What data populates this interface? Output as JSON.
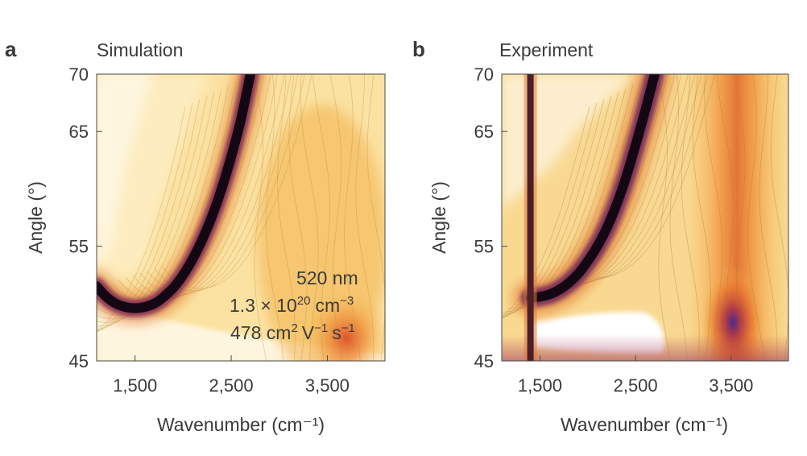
{
  "chart_data": [
    {
      "type": "heatmap",
      "panel": "a",
      "title": "Simulation",
      "xlabel": "Wavenumber (cm⁻¹)",
      "ylabel": "Angle (°)",
      "xlim": [
        1100,
        4100
      ],
      "ylim": [
        45,
        70
      ],
      "x_ticks": [
        1500,
        2500,
        3500
      ],
      "x_tick_labels": [
        "1,500",
        "2,500",
        "3,500"
      ],
      "y_ticks": [
        45,
        55,
        65,
        70
      ],
      "y_tick_labels": [
        "45",
        "55",
        "65",
        "70"
      ],
      "colormap": [
        "#ffffff",
        "#fdf0c4",
        "#f8d27a",
        "#f3a83a",
        "#e46b2a",
        "#b5343f",
        "#6a1f5a",
        "#1a0a1c"
      ],
      "resonance_curve": {
        "x": [
          1100,
          1200,
          1300,
          1400,
          1500,
          1600,
          1700,
          1800,
          1900,
          2000,
          2100,
          2200,
          2300,
          2400,
          2500,
          2600,
          2700
        ],
        "y": [
          51.5,
          50.6,
          50.0,
          49.7,
          49.6,
          49.7,
          50.0,
          50.6,
          51.4,
          52.5,
          53.9,
          55.6,
          57.6,
          60.0,
          62.8,
          66.0,
          70.0
        ]
      },
      "annotations": [
        "520 nm",
        "1.3 × 10",
        "20",
        "cm",
        "−3",
        "478 cm",
        "2",
        "V",
        "−1",
        "s",
        "−1"
      ],
      "grid": false
    },
    {
      "type": "heatmap",
      "panel": "b",
      "title": "Experiment",
      "xlabel": "Wavenumber (cm⁻¹)",
      "ylabel": "Angle (°)",
      "xlim": [
        1100,
        4100
      ],
      "ylim": [
        45,
        70
      ],
      "x_ticks": [
        1500,
        2500,
        3500
      ],
      "x_tick_labels": [
        "1,500",
        "2,500",
        "3,500"
      ],
      "y_ticks": [
        45,
        55,
        65,
        70
      ],
      "y_tick_labels": [
        "45",
        "55",
        "65",
        "70"
      ],
      "colormap": [
        "#ffffff",
        "#fdf0c4",
        "#f8d27a",
        "#f3a83a",
        "#e46b2a",
        "#b5343f",
        "#6a1f5a",
        "#1a0a1c"
      ],
      "resonance_curve": {
        "x": [
          1400,
          1500,
          1600,
          1700,
          1800,
          1900,
          2000,
          2100,
          2200,
          2300,
          2400,
          2500,
          2600,
          2700
        ],
        "y": [
          50.5,
          50.6,
          50.8,
          51.2,
          51.8,
          52.6,
          53.7,
          55.0,
          56.6,
          58.6,
          61.0,
          63.8,
          66.8,
          70.0
        ]
      },
      "absorption_line_x": 1400,
      "grid": false
    }
  ]
}
